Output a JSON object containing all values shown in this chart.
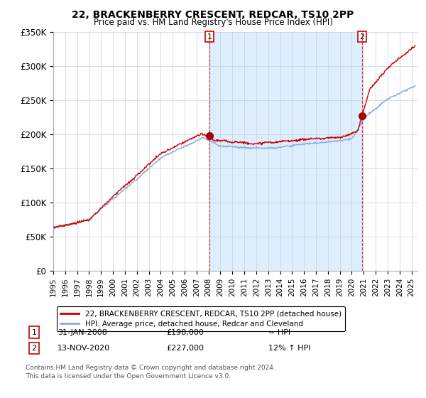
{
  "title": "22, BRACKENBERRY CRESCENT, REDCAR, TS10 2PP",
  "subtitle": "Price paid vs. HM Land Registry's House Price Index (HPI)",
  "ylabel_ticks": [
    "£0",
    "£50K",
    "£100K",
    "£150K",
    "£200K",
    "£250K",
    "£300K",
    "£350K"
  ],
  "yvalues": [
    0,
    50000,
    100000,
    150000,
    200000,
    250000,
    300000,
    350000
  ],
  "ylim": [
    0,
    350000
  ],
  "xlim_start": 1995.0,
  "xlim_end": 2025.5,
  "transaction1_date": 2008.08,
  "transaction1_price": 198000,
  "transaction1_label": "1",
  "transaction1_note": "31-JAN-2008",
  "transaction1_price_str": "£198,000",
  "transaction1_hpi": "≈ HPI",
  "transaction2_date": 2020.87,
  "transaction2_price": 227000,
  "transaction2_label": "2",
  "transaction2_note": "13-NOV-2020",
  "transaction2_price_str": "£227,000",
  "transaction2_hpi": "12% ↑ HPI",
  "hpi_line_color": "#88aadd",
  "price_line_color": "#cc0000",
  "marker_color": "#aa0000",
  "vline_color": "#cc0000",
  "shade_color": "#ddeeff",
  "legend_line1": "22, BRACKENBERRY CRESCENT, REDCAR, TS10 2PP (detached house)",
  "legend_line2": "HPI: Average price, detached house, Redcar and Cleveland",
  "footer1": "Contains HM Land Registry data © Crown copyright and database right 2024.",
  "footer2": "This data is licensed under the Open Government Licence v3.0.",
  "background_color": "#ffffff",
  "grid_color": "#cccccc"
}
